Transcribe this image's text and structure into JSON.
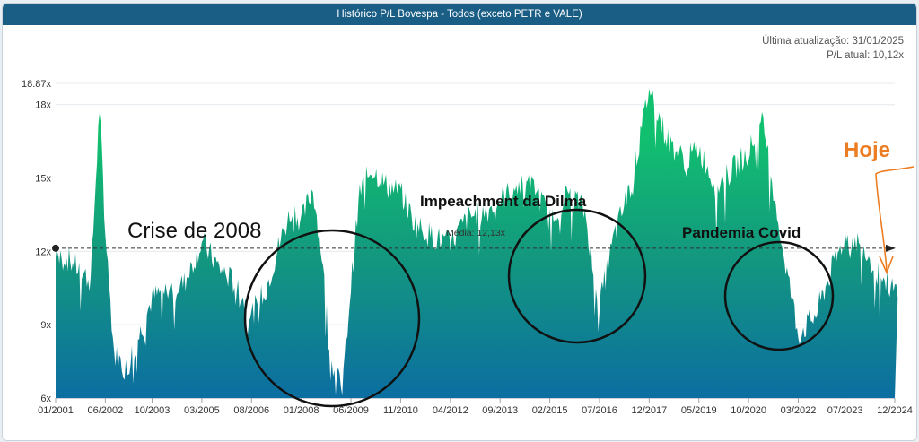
{
  "header": {
    "title": "Histórico P/L Bovespa - Todos (exceto PETR e VALE)"
  },
  "meta": {
    "last_update": "Última atualização: 31/01/2025",
    "current_pl": "P/L atual: 10,12x"
  },
  "annotations": {
    "crisis_2008": "Crise de 2008",
    "impeachment": "Impeachment da Dilma",
    "covid": "Pandemia Covid",
    "today": "Hoje"
  },
  "colors": {
    "area_top": "#11c06f",
    "area_mid": "#13977f",
    "area_bottom": "#0c6ea1",
    "header": "#1a5e86",
    "annotation_orange": "#ec7d22",
    "circle": "#111111"
  },
  "chart_data": {
    "type": "area",
    "title": "Histórico P/L Bovespa - Todos (exceto PETR e VALE)",
    "xlabel": "",
    "ylabel": "",
    "ylim": [
      6,
      18.87
    ],
    "y_ticks": [
      "6x",
      "9x",
      "12x",
      "15x",
      "18x",
      "18.87x"
    ],
    "y_tick_values": [
      6,
      9,
      12,
      15,
      18,
      18.87
    ],
    "x_ticks": [
      "01/2001",
      "06/2002",
      "10/2003",
      "03/2005",
      "08/2006",
      "01/2008",
      "06/2009",
      "11/2010",
      "04/2012",
      "09/2013",
      "02/2015",
      "07/2016",
      "12/2017",
      "05/2019",
      "10/2020",
      "03/2022",
      "07/2023",
      "12/2024"
    ],
    "average": {
      "label": "Média: 12,13x",
      "value": 12.13
    },
    "series": [
      {
        "x": [
          "01/2001",
          "06/2001",
          "01/2002",
          "04/2002",
          "06/2002",
          "09/2002",
          "01/2003",
          "06/2003",
          "10/2003",
          "03/2004",
          "09/2004",
          "03/2005",
          "09/2005",
          "03/2006",
          "08/2006",
          "01/2007",
          "06/2007",
          "10/2007",
          "01/2008",
          "05/2008",
          "08/2008",
          "11/2008",
          "03/2009",
          "06/2009",
          "09/2009",
          "01/2010",
          "06/2010",
          "11/2010",
          "04/2011",
          "10/2011",
          "04/2012",
          "10/2012",
          "04/2013",
          "09/2013",
          "03/2014",
          "09/2014",
          "02/2015",
          "09/2015",
          "02/2016",
          "07/2016",
          "12/2016",
          "06/2017",
          "12/2017",
          "06/2018",
          "12/2018",
          "05/2019",
          "11/2019",
          "05/2020",
          "10/2020",
          "03/2021",
          "09/2021",
          "03/2022",
          "09/2022",
          "02/2023",
          "07/2023",
          "01/2024",
          "06/2024",
          "12/2024",
          "01/2025"
        ],
        "values": [
          12.1,
          11.6,
          10.8,
          17.9,
          12.8,
          7.8,
          7.2,
          8.7,
          10.1,
          10.4,
          10.7,
          12.4,
          11.3,
          10.6,
          9.4,
          10.5,
          12.5,
          13.8,
          13.2,
          14.6,
          11.9,
          7.6,
          6.3,
          10.6,
          14.4,
          15.4,
          14.7,
          14.4,
          13.1,
          12.6,
          12.3,
          13.4,
          13.6,
          14.1,
          14.7,
          14.6,
          13.3,
          14.5,
          13.6,
          9.8,
          12.6,
          14.8,
          18.7,
          16.6,
          15.7,
          16.2,
          14.6,
          15.4,
          16.1,
          17.3,
          12.6,
          8.6,
          9.4,
          11.1,
          12.6,
          12.3,
          11.1,
          10.4,
          10.1
        ]
      }
    ],
    "grid": true,
    "legend": "none"
  }
}
